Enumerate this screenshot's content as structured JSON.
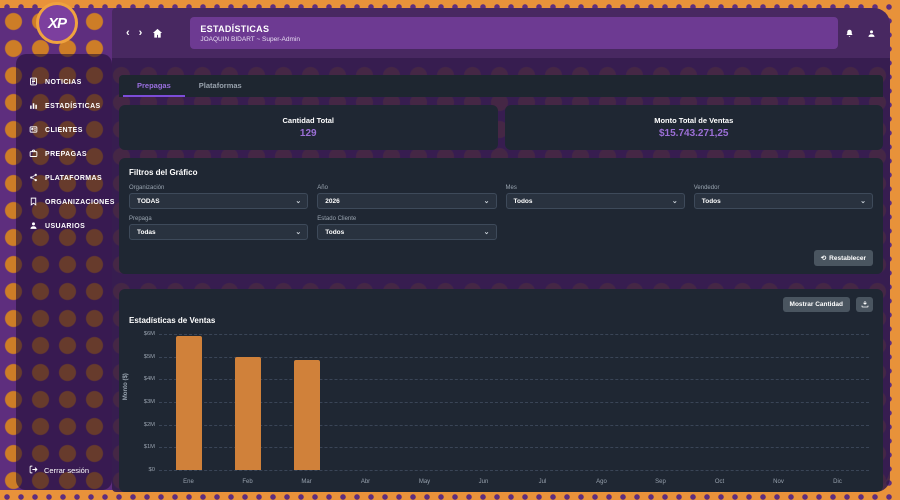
{
  "app": {
    "logo_text": "XP"
  },
  "header": {
    "title": "ESTADÍSTICAS",
    "subtitle": "JOAQUIN BIDART ~ Super-Admin",
    "back_icon": "‹",
    "forward_icon": "›"
  },
  "sidebar": {
    "items": [
      {
        "label": "NOTICIAS",
        "icon": "news-icon"
      },
      {
        "label": "ESTADÍSTICAS",
        "icon": "bar-chart-icon"
      },
      {
        "label": "CLIENTES",
        "icon": "id-card-icon"
      },
      {
        "label": "PREPAGAS",
        "icon": "briefcase-icon"
      },
      {
        "label": "PLATAFORMAS",
        "icon": "share-icon"
      },
      {
        "label": "ORGANIZACIONES",
        "icon": "bookmark-icon"
      },
      {
        "label": "USUARIOS",
        "icon": "user-icon"
      }
    ],
    "logout_label": "Cerrar sesión"
  },
  "tabs": [
    {
      "label": "Prepagas",
      "active": true
    },
    {
      "label": "Plataformas",
      "active": false
    }
  ],
  "stats": [
    {
      "title": "Cantidad Total",
      "value": "129"
    },
    {
      "title": "Monto Total de Ventas",
      "value": "$15.743.271,25"
    }
  ],
  "filters": {
    "title": "Filtros del Gráfico",
    "fields": [
      {
        "label": "Organización",
        "value": "TODAS"
      },
      {
        "label": "Año",
        "value": "2026"
      },
      {
        "label": "Mes",
        "value": "Todos"
      },
      {
        "label": "Vendedor",
        "value": "Todos"
      },
      {
        "label": "Prepaga",
        "value": "Todas"
      },
      {
        "label": "Estado Cliente",
        "value": "Todos"
      }
    ],
    "reset_label": "Restablecer"
  },
  "chart_section": {
    "toggle_label": "Mostrar Cantidad",
    "title": "Estadísticas de Ventas"
  },
  "chart_data": {
    "type": "bar",
    "title": "Estadísticas de Ventas",
    "categories": [
      "Ene",
      "Feb",
      "Mar",
      "Abr",
      "May",
      "Jun",
      "Jul",
      "Ago",
      "Sep",
      "Oct",
      "Nov",
      "Dic"
    ],
    "values": [
      5900000,
      5000000,
      4843271.25,
      0,
      0,
      0,
      0,
      0,
      0,
      0,
      0,
      0
    ],
    "xlabel": "",
    "ylabel": "Monto ($)",
    "ylim": [
      0,
      6000000
    ],
    "ytick_labels": [
      "$0",
      "$1M",
      "$2M",
      "$3M",
      "$4M",
      "$5M",
      "$6M"
    ],
    "grid": "dashed-horizontal",
    "legend": "none",
    "bar_color": "#d0813a"
  },
  "colors": {
    "accent_purple": "#9b6fd6",
    "bar_orange": "#d0813a",
    "card_bg": "#1f2733",
    "header_purple": "#6d3a92",
    "frame_orange": "#e8923a"
  }
}
